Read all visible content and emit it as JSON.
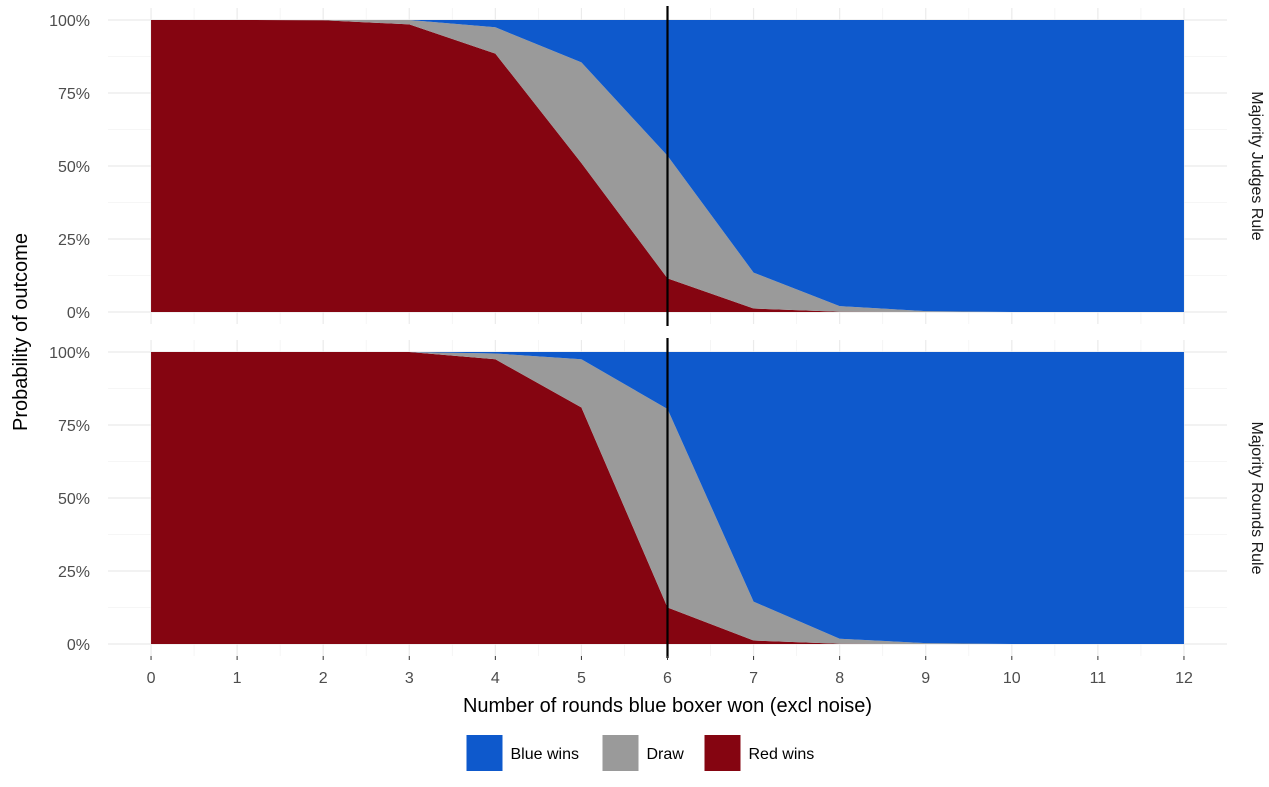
{
  "chart_data": {
    "type": "area",
    "stacked": true,
    "normalized": true,
    "xlabel": "Number of rounds blue boxer won (excl noise)",
    "ylabel": "Probability of outcome",
    "x": [
      0,
      1,
      2,
      3,
      4,
      5,
      6,
      7,
      8,
      9,
      10,
      11,
      12
    ],
    "x_ticks": [
      "0",
      "1",
      "2",
      "3",
      "4",
      "5",
      "6",
      "7",
      "8",
      "9",
      "10",
      "11",
      "12"
    ],
    "xlim": [
      -0.5,
      12.5
    ],
    "ylim": [
      0,
      1
    ],
    "y_ticks": [
      0,
      0.25,
      0.5,
      0.75,
      1
    ],
    "y_tick_labels": [
      "0%",
      "25%",
      "50%",
      "75%",
      "100%"
    ],
    "vline_x": 6,
    "colors": {
      "Blue wins": "#0e59cc",
      "Draw": "#9a9a9a",
      "Red wins": "#850511"
    },
    "legend": {
      "position": "bottom",
      "entries": [
        "Blue wins",
        "Draw",
        "Red wins"
      ]
    },
    "panels": [
      {
        "label": "Majority Judges Rule",
        "series": [
          {
            "name": "Red wins",
            "values": [
              1.0,
              1.0,
              0.999,
              0.985,
              0.885,
              0.51,
              0.115,
              0.012,
              0.001,
              0.0,
              0.0,
              0.0,
              0.0
            ]
          },
          {
            "name": "Draw",
            "values": [
              0.0,
              0.0,
              0.001,
              0.015,
              0.09,
              0.345,
              0.42,
              0.123,
              0.019,
              0.003,
              0.0,
              0.0,
              0.0
            ]
          },
          {
            "name": "Blue wins",
            "values": [
              0.0,
              0.0,
              0.0,
              0.0,
              0.025,
              0.145,
              0.465,
              0.865,
              0.98,
              0.997,
              1.0,
              1.0,
              1.0
            ]
          }
        ]
      },
      {
        "label": "Majority Rounds Rule",
        "series": [
          {
            "name": "Red wins",
            "values": [
              1.0,
              1.0,
              1.0,
              1.0,
              0.975,
              0.81,
              0.125,
              0.012,
              0.001,
              0.0,
              0.0,
              0.0,
              0.0
            ]
          },
          {
            "name": "Draw",
            "values": [
              0.0,
              0.0,
              0.0,
              0.0,
              0.02,
              0.165,
              0.68,
              0.133,
              0.017,
              0.003,
              0.0,
              0.0,
              0.0
            ]
          },
          {
            "name": "Blue wins",
            "values": [
              0.0,
              0.0,
              0.0,
              0.0,
              0.005,
              0.025,
              0.195,
              0.855,
              0.982,
              0.997,
              1.0,
              1.0,
              1.0
            ]
          }
        ]
      }
    ]
  }
}
